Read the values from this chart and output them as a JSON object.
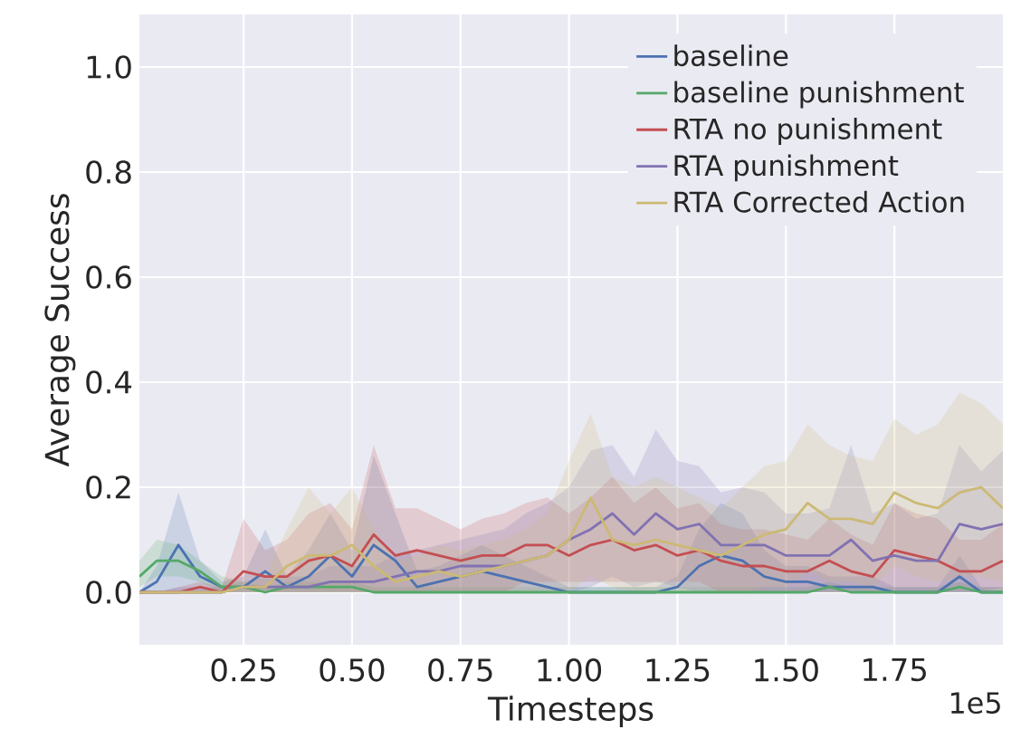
{
  "chart_data": {
    "type": "line",
    "xlabel": "Timesteps",
    "ylabel": "Average Success",
    "annotations": [
      "1e5"
    ],
    "x": [
      0.01,
      0.05,
      0.1,
      0.15,
      0.2,
      0.25,
      0.3,
      0.35,
      0.4,
      0.45,
      0.5,
      0.55,
      0.6,
      0.65,
      0.7,
      0.75,
      0.8,
      0.85,
      0.9,
      0.95,
      1.0,
      1.05,
      1.1,
      1.15,
      1.2,
      1.25,
      1.3,
      1.35,
      1.4,
      1.45,
      1.5,
      1.55,
      1.6,
      1.65,
      1.7,
      1.75,
      1.8,
      1.85,
      1.9,
      1.95,
      2.0
    ],
    "xlim": [
      0.01,
      2.0
    ],
    "ylim": [
      -0.1,
      1.1
    ],
    "xticks": [
      0.25,
      {
        "value": 0.5,
        "label": "0.50"
      },
      0.75,
      {
        "value": 1.0,
        "label": "1.00"
      },
      1.25,
      {
        "value": 1.5,
        "label": "1.50"
      },
      1.75
    ],
    "yticks": [
      {
        "value": 0,
        "label": "0.0"
      },
      {
        "value": 0.2,
        "label": "0.2"
      },
      {
        "value": 0.4,
        "label": "0.4"
      },
      {
        "value": 0.6,
        "label": "0.6"
      },
      {
        "value": 0.8,
        "label": "0.8"
      },
      {
        "value": 1.0,
        "label": "1.0"
      }
    ],
    "grid": true,
    "legend": "top right",
    "line_style": "solid",
    "series": [
      {
        "name": "baseline",
        "color": "#4c72b0",
        "values": [
          0,
          0.02,
          0.09,
          0.03,
          0.01,
          0.01,
          0.04,
          0.01,
          0.03,
          0.07,
          0.03,
          0.09,
          0.06,
          0.01,
          0.02,
          0.03,
          0.04,
          0.03,
          0.02,
          0.01,
          0,
          0,
          0,
          0,
          0,
          0.01,
          0.05,
          0.07,
          0.06,
          0.03,
          0.02,
          0.02,
          0.01,
          0.01,
          0.01,
          0,
          0,
          0,
          0.03,
          0,
          0
        ],
        "lower": [
          0,
          0,
          0,
          0,
          0,
          0,
          0,
          0,
          0,
          0,
          0,
          0,
          0,
          0,
          0,
          0,
          0,
          0,
          0,
          0,
          0,
          0,
          0,
          0,
          0,
          0,
          0,
          0,
          0,
          0,
          0,
          0,
          0,
          0,
          0,
          0,
          0,
          0,
          0,
          0,
          0
        ],
        "upper": [
          0,
          0.05,
          0.19,
          0.06,
          0.02,
          0.03,
          0.12,
          0.03,
          0.08,
          0.15,
          0.08,
          0.26,
          0.15,
          0.04,
          0.05,
          0.07,
          0.09,
          0.07,
          0.05,
          0.03,
          0.01,
          0.01,
          0.01,
          0.01,
          0.01,
          0.03,
          0.12,
          0.17,
          0.15,
          0.08,
          0.05,
          0.05,
          0.03,
          0.03,
          0.03,
          0.01,
          0.01,
          0.01,
          0.07,
          0.01,
          0.01
        ]
      },
      {
        "name": "baseline punishment",
        "color": "#55a868",
        "values": [
          0.03,
          0.06,
          0.06,
          0.04,
          0.01,
          0.01,
          0,
          0.01,
          0.01,
          0.01,
          0.01,
          0,
          0,
          0,
          0,
          0,
          0,
          0,
          0,
          0,
          0,
          0,
          0,
          0,
          0,
          0,
          0,
          0,
          0,
          0,
          0,
          0,
          0.01,
          0,
          0,
          0,
          0,
          0,
          0.01,
          0,
          0
        ],
        "lower": [
          0.01,
          0.03,
          0.03,
          0.02,
          0,
          0,
          0,
          0,
          0,
          0,
          0,
          0,
          0,
          0,
          0,
          0,
          0,
          0,
          0,
          0,
          0,
          0,
          0,
          0,
          0,
          0,
          0,
          0,
          0,
          0,
          0,
          0,
          0,
          0,
          0,
          0,
          0,
          0,
          0,
          0,
          0
        ],
        "upper": [
          0.06,
          0.1,
          0.09,
          0.06,
          0.03,
          0.02,
          0.01,
          0.02,
          0.02,
          0.02,
          0.02,
          0.01,
          0.01,
          0.01,
          0.01,
          0.01,
          0.01,
          0.01,
          0.01,
          0.01,
          0.01,
          0.01,
          0.01,
          0.01,
          0.01,
          0.01,
          0.01,
          0.01,
          0.01,
          0.01,
          0.01,
          0.01,
          0.02,
          0.01,
          0.01,
          0.01,
          0.01,
          0.01,
          0.02,
          0.01,
          0.01
        ]
      },
      {
        "name": "RTA no punishment",
        "color": "#c44e52",
        "values": [
          0,
          0,
          0,
          0.01,
          0,
          0.04,
          0.03,
          0.03,
          0.06,
          0.07,
          0.05,
          0.11,
          0.07,
          0.08,
          0.07,
          0.06,
          0.07,
          0.07,
          0.09,
          0.09,
          0.07,
          0.09,
          0.1,
          0.08,
          0.09,
          0.07,
          0.08,
          0.06,
          0.05,
          0.05,
          0.04,
          0.04,
          0.06,
          0.04,
          0.03,
          0.08,
          0.07,
          0.06,
          0.04,
          0.04,
          0.06
        ],
        "lower": [
          0,
          0,
          0,
          0,
          0,
          0,
          0,
          0,
          0,
          0,
          0,
          0,
          0,
          0,
          0,
          0,
          0,
          0,
          0.02,
          0.02,
          0.02,
          0.02,
          0.02,
          0.02,
          0.02,
          0.02,
          0.02,
          0,
          0,
          0,
          0,
          0,
          0,
          0,
          0,
          0,
          0,
          0,
          0,
          0,
          0
        ],
        "upper": [
          0,
          0,
          0.01,
          0.02,
          0.01,
          0.14,
          0.08,
          0.1,
          0.15,
          0.17,
          0.12,
          0.28,
          0.16,
          0.16,
          0.14,
          0.12,
          0.14,
          0.15,
          0.17,
          0.18,
          0.15,
          0.18,
          0.22,
          0.17,
          0.2,
          0.16,
          0.17,
          0.13,
          0.12,
          0.12,
          0.11,
          0.1,
          0.14,
          0.11,
          0.09,
          0.17,
          0.15,
          0.14,
          0.1,
          0.1,
          0.13
        ]
      },
      {
        "name": "RTA punishment",
        "color": "#8172b2",
        "values": [
          0,
          0,
          0,
          0,
          0,
          0.01,
          0.01,
          0.01,
          0.01,
          0.02,
          0.02,
          0.02,
          0.03,
          0.04,
          0.04,
          0.05,
          0.05,
          0.05,
          0.06,
          0.07,
          0.1,
          0.12,
          0.15,
          0.11,
          0.15,
          0.12,
          0.13,
          0.09,
          0.09,
          0.09,
          0.07,
          0.07,
          0.07,
          0.1,
          0.06,
          0.07,
          0.06,
          0.06,
          0.13,
          0.12,
          0.13
        ],
        "lower": [
          0,
          0,
          0,
          0,
          0,
          0,
          0,
          0,
          0,
          0,
          0,
          0,
          0,
          0,
          0,
          0,
          0,
          0,
          0,
          0,
          0,
          0.01,
          0.03,
          0.01,
          0.02,
          0.01,
          0,
          0,
          0,
          0,
          0,
          0,
          0,
          0,
          0,
          0,
          0,
          0,
          0,
          0,
          0.01
        ],
        "upper": [
          0,
          0,
          0.01,
          0.01,
          0.01,
          0.02,
          0.03,
          0.03,
          0.03,
          0.05,
          0.05,
          0.05,
          0.07,
          0.08,
          0.09,
          0.1,
          0.11,
          0.12,
          0.15,
          0.17,
          0.2,
          0.27,
          0.28,
          0.22,
          0.31,
          0.25,
          0.24,
          0.19,
          0.2,
          0.19,
          0.15,
          0.15,
          0.16,
          0.28,
          0.15,
          0.17,
          0.14,
          0.15,
          0.28,
          0.23,
          0.27
        ]
      },
      {
        "name": "RTA Corrected Action",
        "color": "#ccb974",
        "values": [
          0,
          0,
          0,
          0,
          0,
          0.01,
          0.01,
          0.05,
          0.07,
          0.07,
          0.09,
          0.05,
          0.02,
          0.03,
          0.04,
          0.03,
          0.04,
          0.05,
          0.06,
          0.07,
          0.1,
          0.18,
          0.1,
          0.09,
          0.1,
          0.09,
          0.08,
          0.07,
          0.09,
          0.11,
          0.12,
          0.17,
          0.14,
          0.14,
          0.13,
          0.19,
          0.17,
          0.16,
          0.19,
          0.2,
          0.16
        ],
        "lower": [
          0,
          0,
          0,
          0,
          0,
          0,
          0,
          0,
          0,
          0,
          0,
          0,
          0,
          0,
          0,
          0,
          0,
          0,
          0,
          0,
          0,
          0.03,
          0.01,
          0,
          0,
          0,
          0,
          0,
          0,
          0.01,
          0.01,
          0.04,
          0.02,
          0.02,
          0.01,
          0.05,
          0.03,
          0.02,
          0.03,
          0.03,
          0.02
        ],
        "upper": [
          0,
          0,
          0,
          0,
          0.01,
          0.02,
          0.03,
          0.12,
          0.2,
          0.15,
          0.2,
          0.12,
          0.06,
          0.07,
          0.09,
          0.08,
          0.09,
          0.1,
          0.12,
          0.15,
          0.25,
          0.34,
          0.22,
          0.2,
          0.22,
          0.2,
          0.18,
          0.16,
          0.2,
          0.24,
          0.25,
          0.32,
          0.28,
          0.26,
          0.25,
          0.33,
          0.3,
          0.32,
          0.38,
          0.36,
          0.32
        ]
      }
    ]
  }
}
